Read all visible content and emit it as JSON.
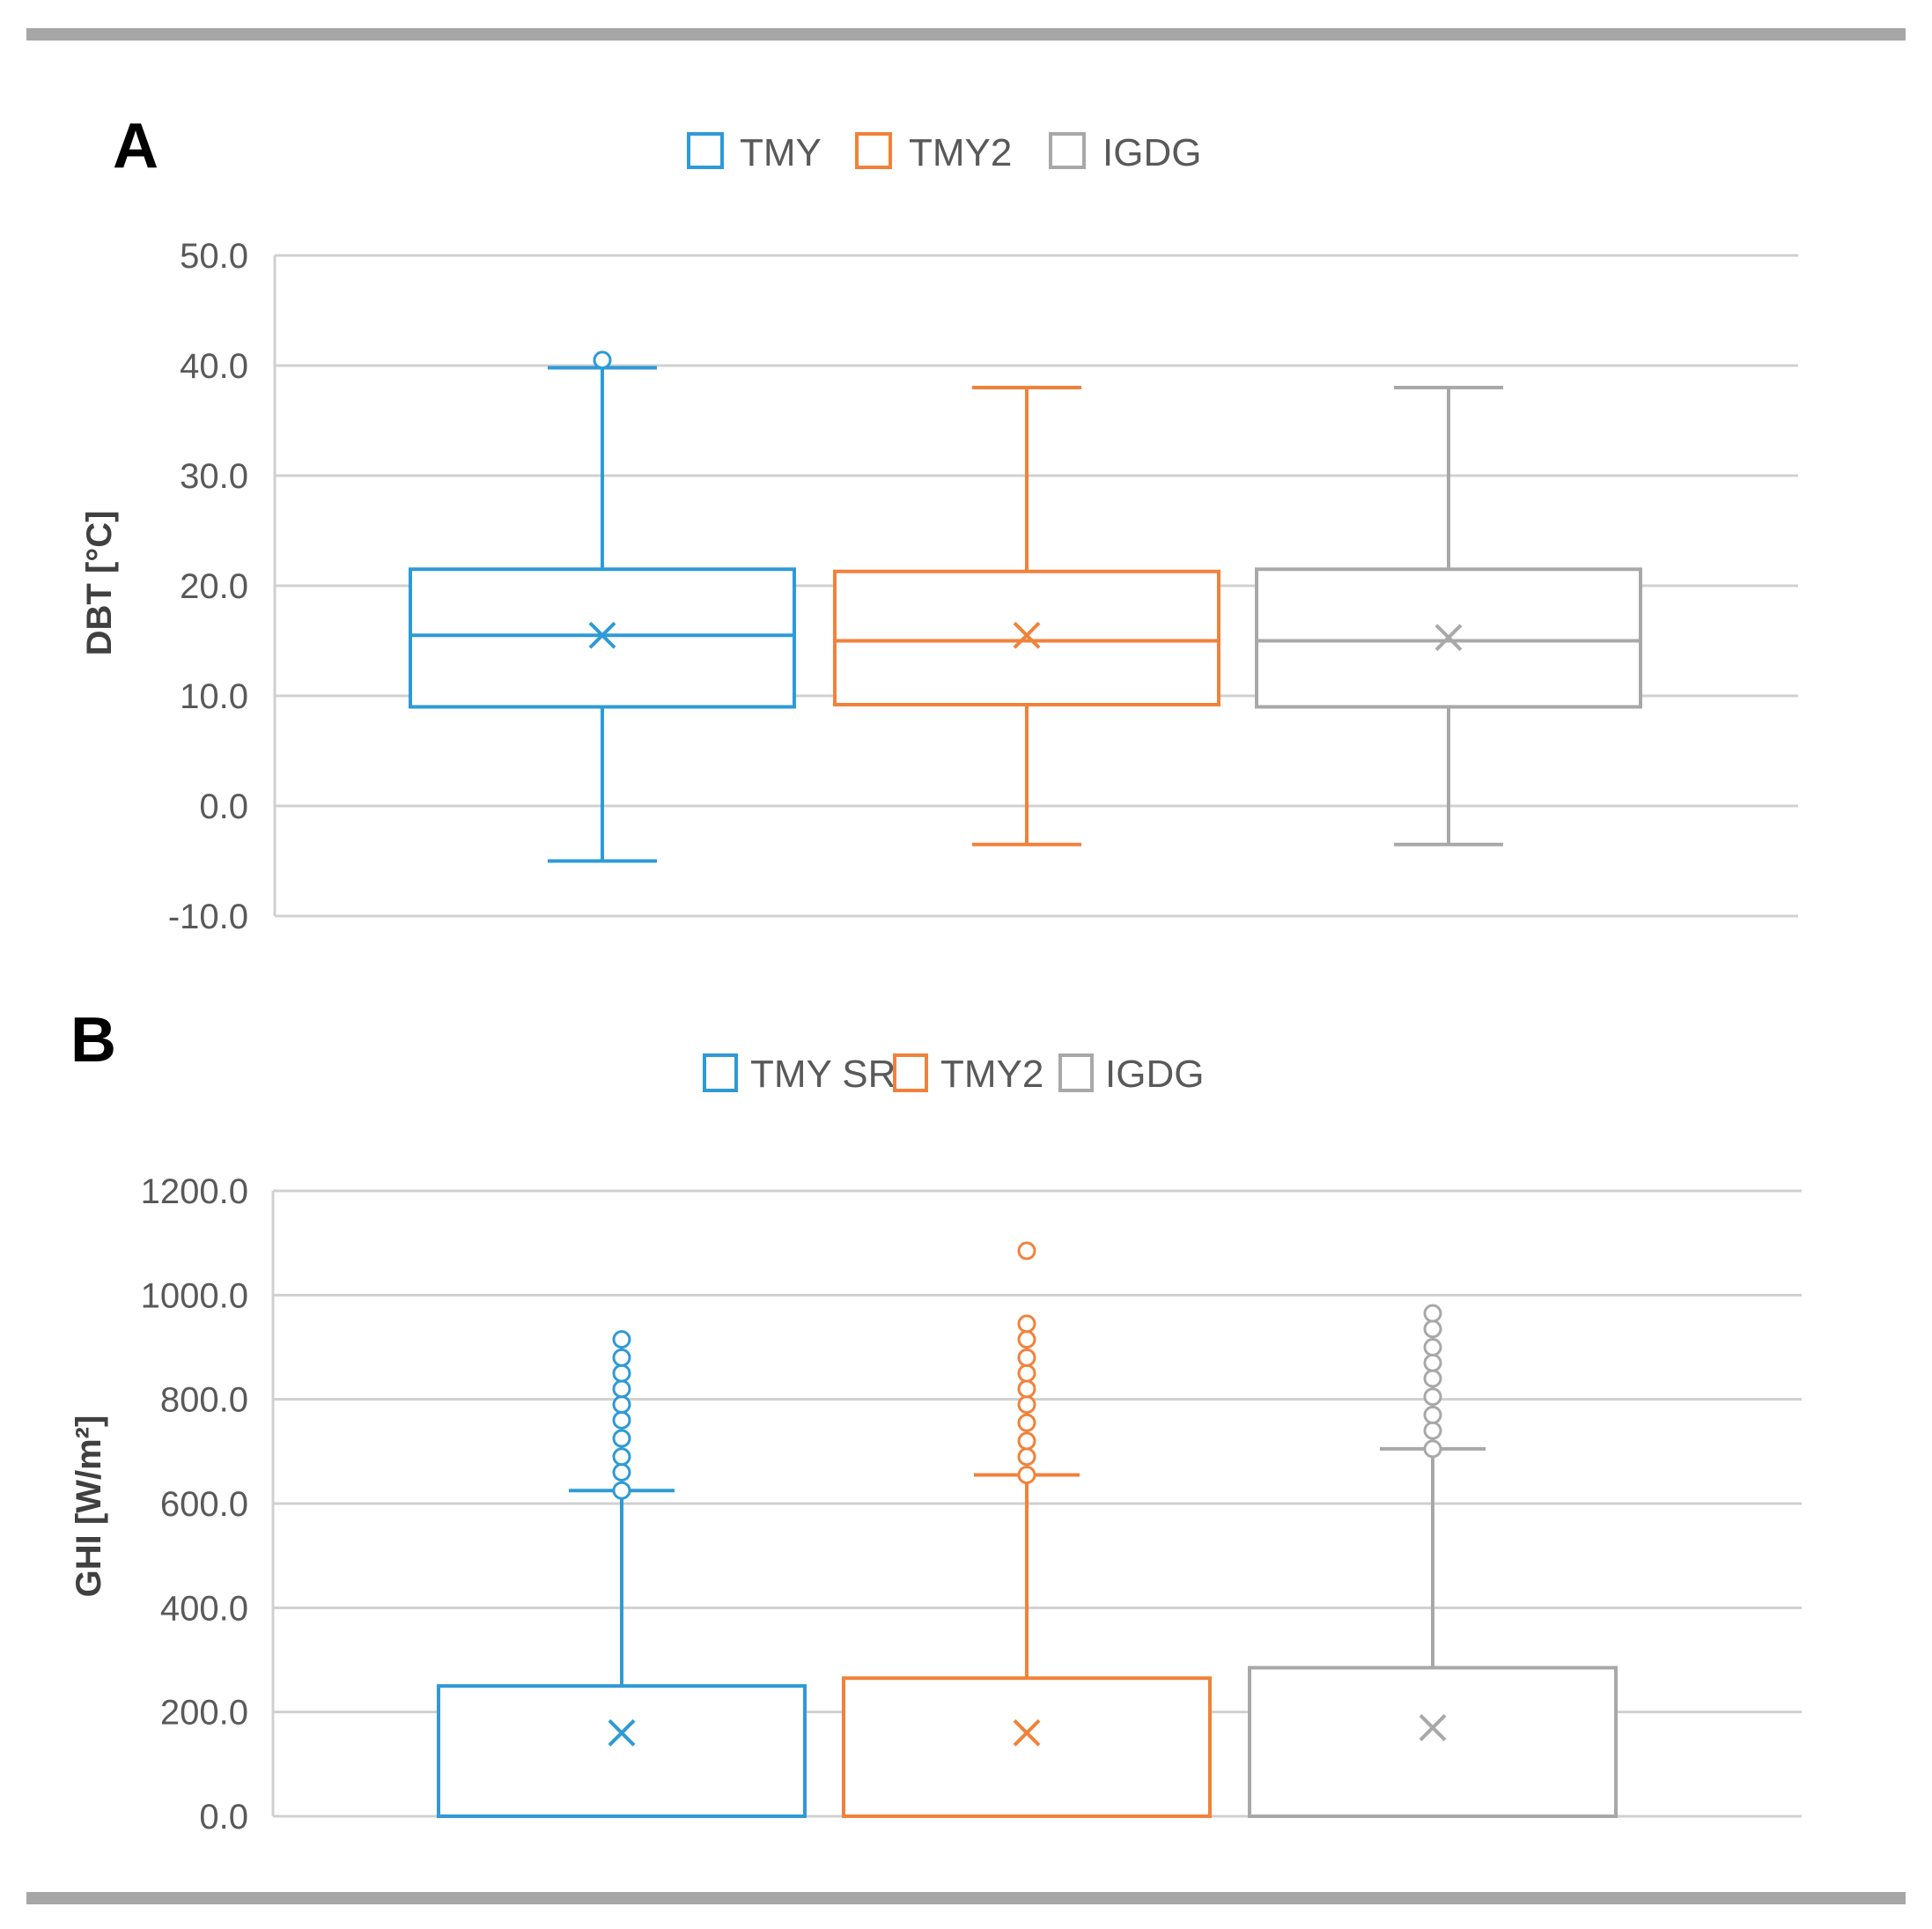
{
  "figure": {
    "background": "#ffffff",
    "rule_color": "#a6a6a6"
  },
  "chart_data": [
    {
      "type": "boxplot",
      "panel": "A",
      "ylabel": "DBT [°C]",
      "ylim": [
        -10,
        50
      ],
      "yticks": [
        -10,
        0,
        10,
        20,
        30,
        40,
        50
      ],
      "ytick_labels": [
        "-10.0",
        "0.0",
        "10.0",
        "20.0",
        "30.0",
        "40.0",
        "50.0"
      ],
      "grid": true,
      "legend_position": "top-center",
      "series": [
        {
          "name": "TMY",
          "color": "#2e9ad6",
          "whisker_low": -5.0,
          "q1": 9.0,
          "median": 15.5,
          "q3": 21.5,
          "whisker_high": 39.8,
          "mean": 15.5,
          "outliers": [
            40.5
          ]
        },
        {
          "name": "TMY2",
          "color": "#f0823a",
          "whisker_low": -3.5,
          "q1": 9.2,
          "median": 15.0,
          "q3": 21.3,
          "whisker_high": 38.0,
          "mean": 15.5,
          "outliers": []
        },
        {
          "name": "IGDG",
          "color": "#a8a8a8",
          "whisker_low": -3.5,
          "q1": 9.0,
          "median": 15.0,
          "q3": 21.5,
          "whisker_high": 38.0,
          "mean": 15.3,
          "outliers": []
        }
      ]
    },
    {
      "type": "boxplot",
      "panel": "B",
      "ylabel": "GHI [W/m²]",
      "ylim": [
        0,
        1200
      ],
      "yticks": [
        0,
        200,
        400,
        600,
        800,
        1000,
        1200
      ],
      "ytick_labels": [
        "0.0",
        "200.0",
        "400.0",
        "600.0",
        "800.0",
        "1000.0",
        "1200.0"
      ],
      "grid": true,
      "legend_position": "top-center",
      "series": [
        {
          "name": "TMY SR",
          "color": "#2e9ad6",
          "whisker_low": 0,
          "q1": 0,
          "median": 0,
          "q3": 250,
          "whisker_high": 625,
          "mean": 160,
          "outliers": [
            625,
            660,
            690,
            725,
            760,
            790,
            820,
            850,
            880,
            915
          ]
        },
        {
          "name": "TMY2",
          "color": "#f0823a",
          "whisker_low": 0,
          "q1": 0,
          "median": 0,
          "q3": 265,
          "whisker_high": 655,
          "mean": 160,
          "outliers": [
            655,
            690,
            720,
            755,
            790,
            820,
            850,
            880,
            915,
            945,
            1085
          ]
        },
        {
          "name": "IGDG",
          "color": "#a8a8a8",
          "whisker_low": 0,
          "q1": 0,
          "median": 0,
          "q3": 285,
          "whisker_high": 705,
          "mean": 170,
          "outliers": [
            705,
            740,
            770,
            805,
            840,
            870,
            900,
            935,
            965
          ]
        }
      ]
    }
  ]
}
